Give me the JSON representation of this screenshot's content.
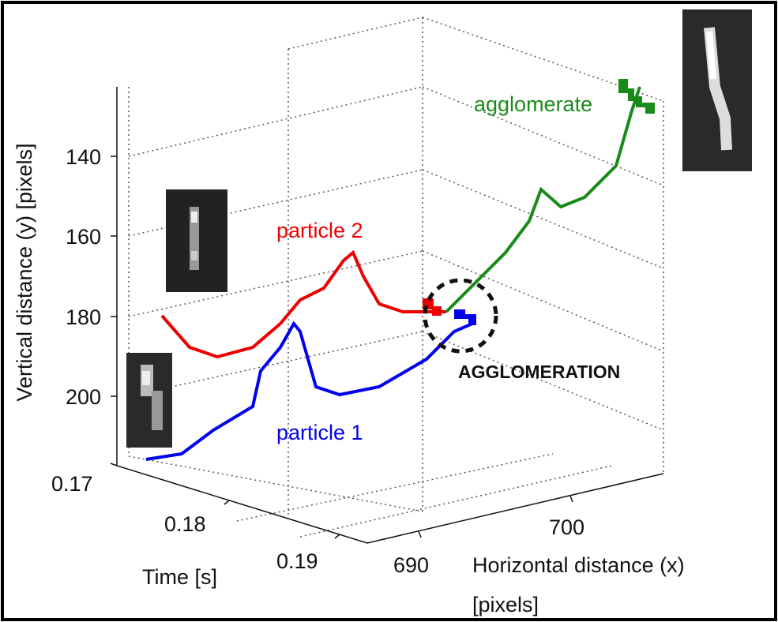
{
  "figure": {
    "y_axis": {
      "label": "Vertical distance (y) [pixels]",
      "ticks": [
        "140",
        "160",
        "180",
        "200"
      ]
    },
    "time_axis": {
      "label": "Time [s]",
      "ticks": [
        "0.17",
        "0.18",
        "0.19"
      ]
    },
    "x_axis": {
      "label": "Horizontal distance (x)",
      "label_unit": "[pixels]",
      "ticks": [
        "690",
        "700"
      ]
    },
    "annotations": {
      "particle_2": "particle 2",
      "particle_1": "particle 1",
      "agglomerate": "agglomerate",
      "event": "AGGLOMERATION"
    }
  }
}
